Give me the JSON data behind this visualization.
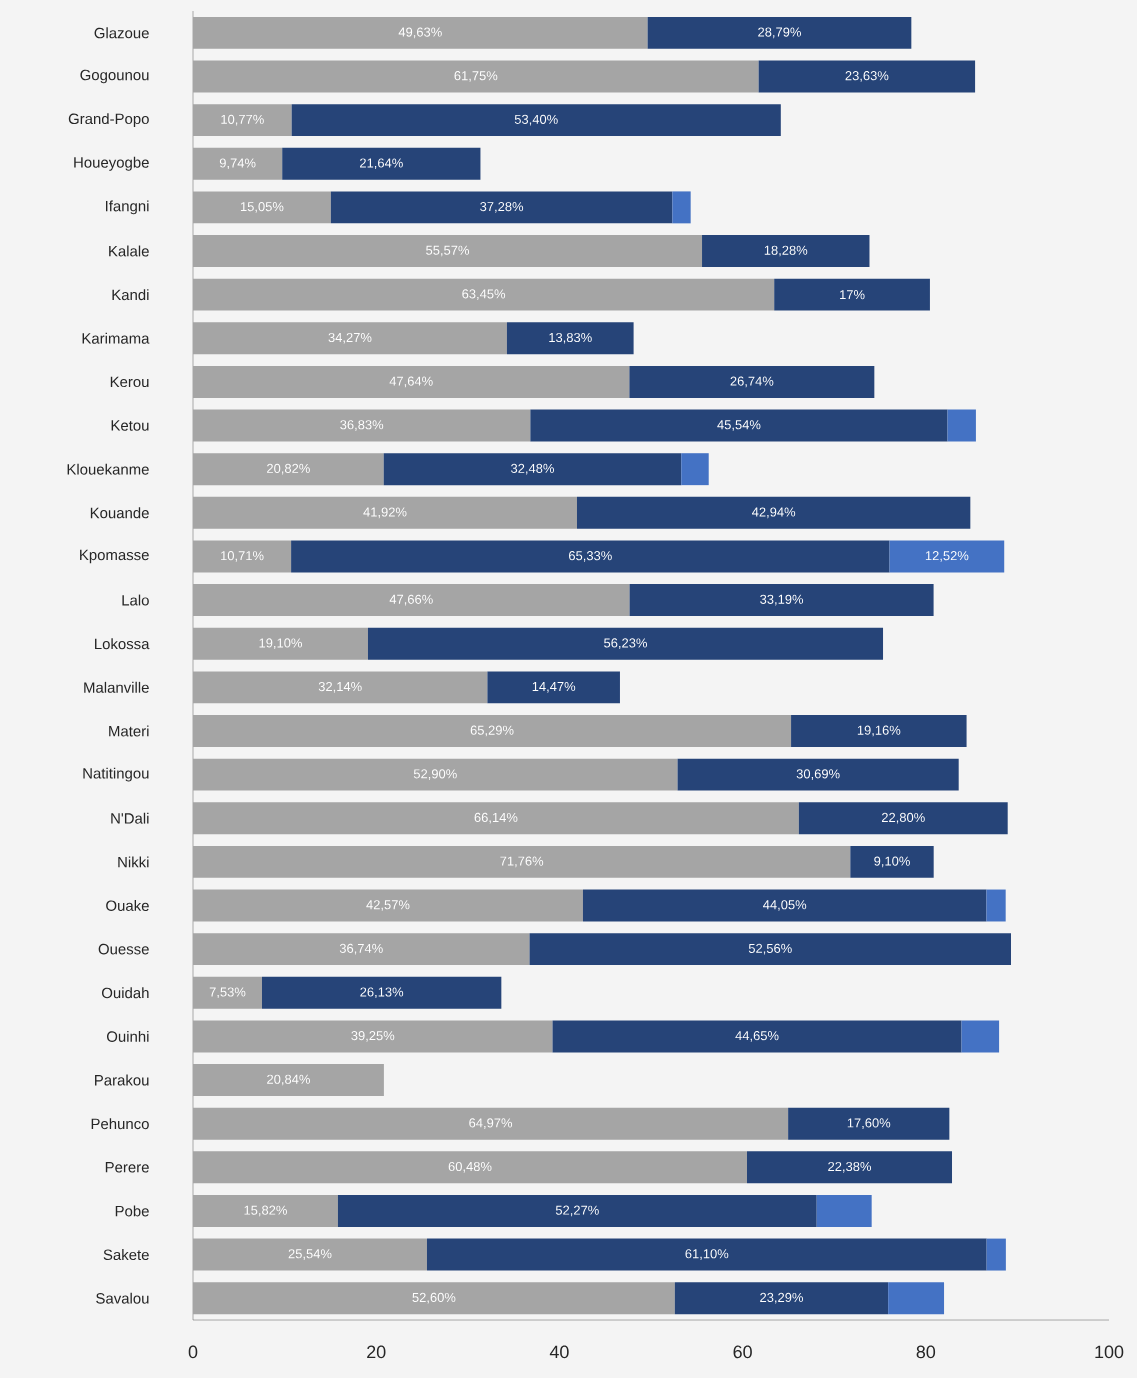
{
  "chart_data": {
    "type": "bar",
    "orientation": "horizontal",
    "stacked": true,
    "categories": [
      "Glazoue",
      "Gogounou",
      "Grand-Popo",
      "Houeyogbe",
      "Ifangni",
      "Kalale",
      "Kandi",
      "Karimama",
      "Kerou",
      "Ketou",
      "Klouekanme",
      "Kouande",
      "Kpomasse",
      "Lalo",
      "Lokossa",
      "Malanville",
      "Materi",
      "Natitingou",
      "N'Dali",
      "Nikki",
      "Ouake",
      "Ouesse",
      "Ouidah",
      "Ouinhi",
      "Parakou",
      "Pehunco",
      "Perere",
      "Pobe",
      "Sakete",
      "Savalou"
    ],
    "series": [
      {
        "color": "#a5a5a5",
        "values": [
          49.63,
          61.75,
          10.77,
          9.74,
          15.05,
          55.57,
          63.45,
          34.27,
          47.64,
          36.83,
          20.82,
          41.92,
          10.71,
          47.66,
          19.1,
          32.14,
          65.29,
          52.9,
          66.14,
          71.76,
          42.57,
          36.74,
          7.53,
          39.25,
          20.84,
          64.97,
          60.48,
          15.82,
          25.54,
          52.6
        ],
        "value_labels": [
          "49,63%",
          "61,75%",
          "10,77%",
          "9,74%",
          "15,05%",
          "55,57%",
          "63,45%",
          "34,27%",
          "47,64%",
          "36,83%",
          "20,82%",
          "41,92%",
          "10,71%",
          "47,66%",
          "19,10%",
          "32,14%",
          "65,29%",
          "52,90%",
          "66,14%",
          "71,76%",
          "42,57%",
          "36,74%",
          "7,53%",
          "39,25%",
          "20,84%",
          "64,97%",
          "60,48%",
          "15,82%",
          "25,54%",
          "52,60%"
        ]
      },
      {
        "color": "#264478",
        "values": [
          28.79,
          23.63,
          53.4,
          21.64,
          37.28,
          18.28,
          17,
          13.83,
          26.74,
          45.54,
          32.48,
          42.94,
          65.33,
          33.19,
          56.23,
          14.47,
          19.16,
          30.69,
          22.8,
          9.1,
          44.05,
          52.56,
          26.13,
          44.65,
          null,
          17.6,
          22.38,
          52.27,
          61.1,
          23.29
        ],
        "value_labels": [
          "28,79%",
          "23,63%",
          "53,40%",
          "21,64%",
          "37,28%",
          "18,28%",
          "17%",
          "13,83%",
          "26,74%",
          "45,54%",
          "32,48%",
          "42,94%",
          "65,33%",
          "33,19%",
          "56,23%",
          "14,47%",
          "19,16%",
          "30,69%",
          "22,80%",
          "9,10%",
          "44,05%",
          "52,56%",
          "26,13%",
          "44,65%",
          null,
          "17,60%",
          "22,38%",
          "52,27%",
          "61,10%",
          "23,29%"
        ]
      },
      {
        "color": "#4472c4",
        "values": [
          null,
          null,
          null,
          null,
          2.0,
          null,
          null,
          null,
          null,
          3.1,
          3.0,
          null,
          12.52,
          null,
          null,
          null,
          null,
          null,
          null,
          null,
          2.1,
          null,
          null,
          4.1,
          null,
          null,
          null,
          6.0,
          2.1,
          6.1
        ],
        "value_labels": [
          null,
          null,
          null,
          null,
          null,
          null,
          null,
          null,
          null,
          null,
          null,
          null,
          "12,52%",
          null,
          null,
          null,
          null,
          null,
          null,
          null,
          null,
          null,
          null,
          null,
          null,
          null,
          null,
          null,
          null,
          null
        ]
      }
    ],
    "xlim": [
      0,
      100
    ],
    "xticks": [
      0,
      20,
      40,
      60,
      80,
      100
    ],
    "grid": false
  }
}
